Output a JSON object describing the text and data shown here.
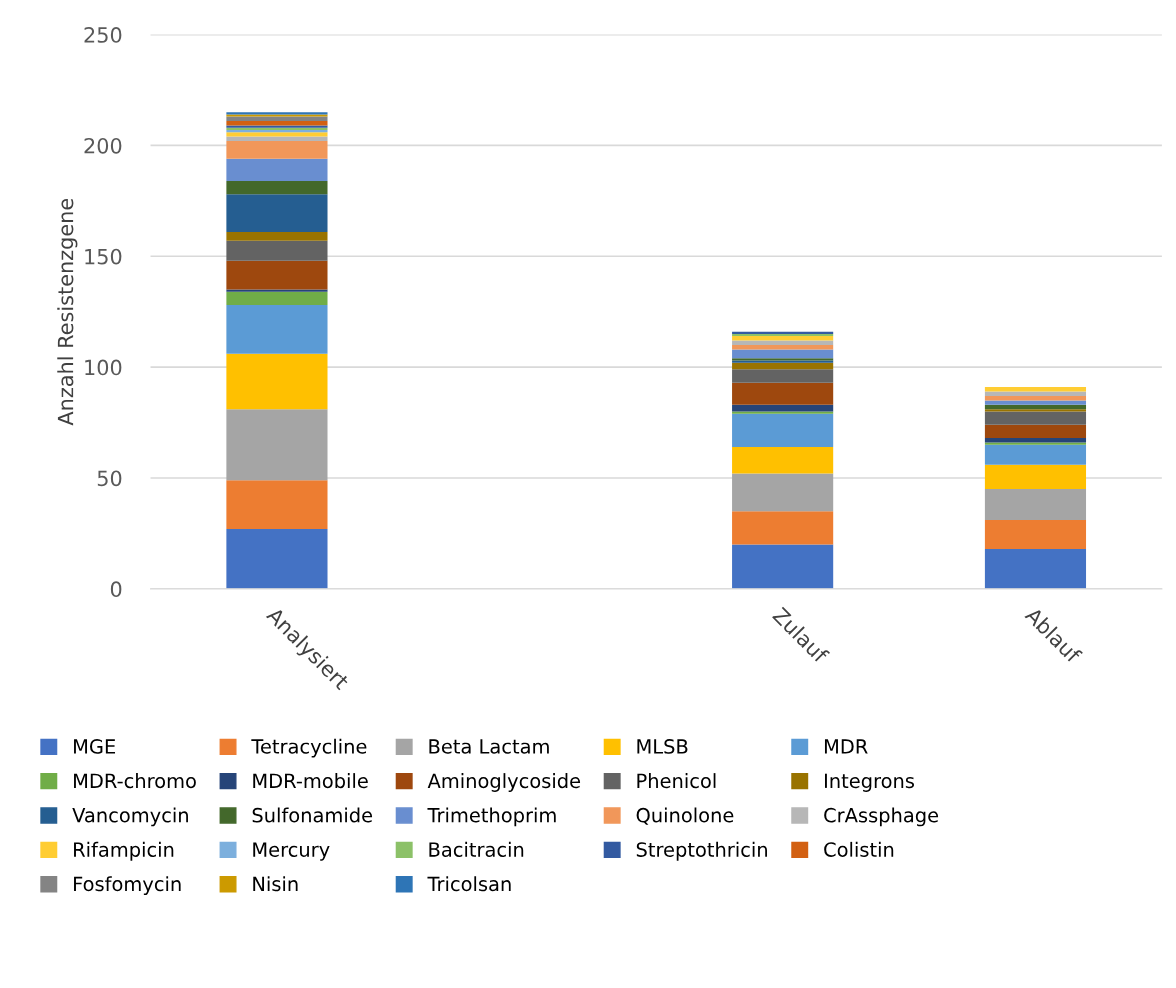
{
  "chart_data": {
    "type": "bar",
    "stacked": true,
    "ylabel": "Anzahl Resistenzgene",
    "categories": [
      "Analysiert",
      null,
      "Zulauf",
      "Ablauf"
    ],
    "ylim": [
      0,
      250
    ],
    "yticks": [
      0,
      50,
      100,
      150,
      200,
      250
    ],
    "grid": "y",
    "legend": "bottom",
    "series": [
      {
        "name": "MGE",
        "color": "#4472c4",
        "values": [
          27,
          null,
          20,
          18
        ]
      },
      {
        "name": "Tetracycline",
        "color": "#ed7d31",
        "values": [
          22,
          null,
          15,
          13
        ]
      },
      {
        "name": "Beta Lactam",
        "color": "#a5a5a5",
        "values": [
          32,
          null,
          17,
          14
        ]
      },
      {
        "name": "MLSB",
        "color": "#ffc000",
        "values": [
          25,
          null,
          12,
          11
        ]
      },
      {
        "name": "MDR",
        "color": "#5b9bd5",
        "values": [
          22,
          null,
          15,
          9
        ]
      },
      {
        "name": "MDR-chromo",
        "color": "#70ad47",
        "values": [
          6,
          null,
          1,
          1
        ]
      },
      {
        "name": "MDR-mobile",
        "color": "#264478",
        "values": [
          1,
          null,
          3,
          2
        ]
      },
      {
        "name": "Aminoglycoside",
        "color": "#9e480e",
        "values": [
          13,
          null,
          10,
          6
        ]
      },
      {
        "name": "Phenicol",
        "color": "#636363",
        "values": [
          9,
          null,
          6,
          6
        ]
      },
      {
        "name": "Integrons",
        "color": "#997300",
        "values": [
          4,
          null,
          3,
          1
        ]
      },
      {
        "name": "Vancomycin",
        "color": "#255e91",
        "values": [
          17,
          null,
          1,
          0
        ]
      },
      {
        "name": "Sulfonamide",
        "color": "#43682b",
        "values": [
          6,
          null,
          1,
          2
        ]
      },
      {
        "name": "Trimethoprim",
        "color": "#698ed0",
        "values": [
          10,
          null,
          4,
          2
        ]
      },
      {
        "name": "Quinolone",
        "color": "#f1975a",
        "values": [
          8,
          null,
          2,
          2
        ]
      },
      {
        "name": "CrAssphage",
        "color": "#b7b7b7",
        "values": [
          2,
          null,
          2,
          2
        ]
      },
      {
        "name": "Rifampicin",
        "color": "#ffcd33",
        "values": [
          2,
          null,
          2,
          2
        ]
      },
      {
        "name": "Mercury",
        "color": "#7cafdd",
        "values": [
          1,
          null,
          0,
          0
        ]
      },
      {
        "name": "Bacitracin",
        "color": "#8cc168",
        "values": [
          1,
          null,
          1,
          0
        ]
      },
      {
        "name": "Streptothricin",
        "color": "#335aa1",
        "values": [
          1,
          null,
          1,
          0
        ]
      },
      {
        "name": "Colistin",
        "color": "#d26012",
        "values": [
          2,
          null,
          0,
          0
        ]
      },
      {
        "name": "Fosfomycin",
        "color": "#848484",
        "values": [
          2,
          null,
          0,
          0
        ]
      },
      {
        "name": "Nisin",
        "color": "#cc9a00",
        "values": [
          1,
          null,
          0,
          0
        ]
      },
      {
        "name": "Tricolsan",
        "color": "#2e75b6",
        "values": [
          1,
          null,
          0,
          0
        ]
      }
    ]
  }
}
